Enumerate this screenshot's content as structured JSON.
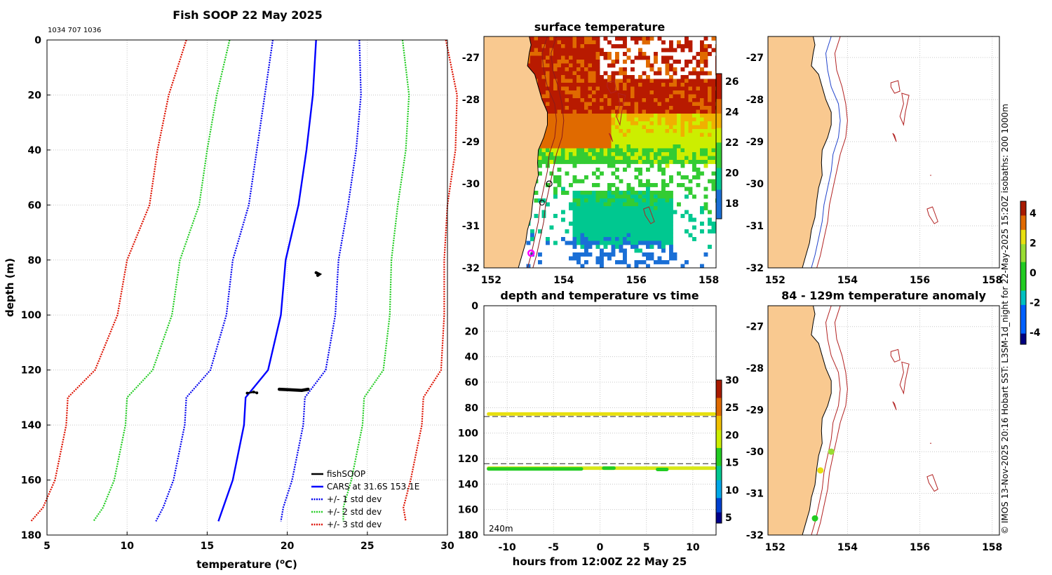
{
  "chart_data": [
    {
      "type": "line",
      "title": "Fish SOOP 22 May 2025",
      "subtitle": "1034 707 1036",
      "xlabel": "temperature",
      "xlabel_unit_pre": "(",
      "xlabel_unit_sup": "o",
      "xlabel_unit_post": "C)",
      "ylabel": "depth (m)",
      "xlim": [
        5,
        30
      ],
      "ylim": [
        180,
        0
      ],
      "xticks": [
        5,
        10,
        15,
        20,
        25,
        30
      ],
      "yticks": [
        0,
        20,
        40,
        60,
        80,
        100,
        120,
        140,
        160,
        180
      ],
      "legend": [
        "fishSOOP",
        "CARS at 31.6S 153.1E",
        "+/- 1 std dev",
        "+/- 2 std dev",
        "+/- 3 std dev"
      ],
      "series_colors": {
        "fishsoop": "#000000",
        "cars": "#0000ff",
        "sd1": "#0000ee",
        "sd2": "#22cc22",
        "sd3": "#dd1100"
      },
      "cars_depth": [
        0,
        20,
        40,
        60,
        80,
        100,
        120,
        130,
        140,
        160,
        170,
        175
      ],
      "cars_temp": [
        21.8,
        21.6,
        21.2,
        20.7,
        19.9,
        19.6,
        18.8,
        17.4,
        17.3,
        16.6,
        16.0,
        15.7
      ],
      "std_dev_width": [
        2.7,
        3.0,
        3.1,
        3.1,
        3.3,
        3.4,
        3.6,
        3.7,
        3.7,
        3.7,
        3.75,
        3.9
      ],
      "fishsoop_points": [
        [
          21.8,
          84.6
        ],
        [
          22.0,
          85.2
        ],
        [
          21.9,
          85.6
        ],
        [
          17.5,
          128.4
        ],
        [
          17.9,
          128.0
        ],
        [
          18.1,
          128.3
        ],
        [
          19.5,
          127.0
        ],
        [
          20.2,
          127.2
        ],
        [
          20.9,
          127.4
        ],
        [
          21.3,
          127.0
        ]
      ]
    },
    {
      "type": "heatmap",
      "title": "surface temperature",
      "xlim": [
        151.8,
        158.2
      ],
      "ylim": [
        -32,
        -26.5
      ],
      "xticks": [
        152,
        154,
        156,
        158
      ],
      "yticks": [
        -27,
        -28,
        -29,
        -30,
        -31,
        -32
      ],
      "colorbar_ticks": [
        18,
        20,
        22,
        24,
        26
      ],
      "colorbar_range": [
        17,
        26.5
      ]
    },
    {
      "type": "line",
      "title": "depth and temperature vs time",
      "xlabel": "hours from 12:00Z 22 May 25",
      "xlim": [
        -12.5,
        12.5
      ],
      "ylim": [
        180,
        0
      ],
      "xticks": [
        -10,
        -5,
        0,
        5,
        10
      ],
      "yticks": [
        0,
        20,
        40,
        60,
        80,
        100,
        120,
        140,
        160,
        180
      ],
      "annotation": "240m",
      "reference_depths": [
        87,
        124
      ],
      "colorbar_ticks": [
        5,
        10,
        15,
        20,
        25,
        30
      ],
      "colorbar_range": [
        4,
        30
      ],
      "series": [
        {
          "name": "shallow",
          "depth": 85,
          "temperature": 22.5
        },
        {
          "name": "deep",
          "depth": 127.5,
          "temperature": 17.5
        }
      ]
    },
    {
      "type": "map",
      "title": "",
      "xlim": [
        151.8,
        158.2
      ],
      "ylim": [
        -32,
        -26.5
      ],
      "xticks": [
        152,
        154,
        156,
        158
      ],
      "yticks": [
        -27,
        -28,
        -29,
        -30,
        -31,
        -32
      ]
    },
    {
      "type": "scatter",
      "title": "84 - 129m temperature anomaly",
      "xlim": [
        151.8,
        158.2
      ],
      "ylim": [
        -32,
        -26.5
      ],
      "xticks": [
        152,
        154,
        156,
        158
      ],
      "yticks": [
        -27,
        -28,
        -29,
        -30,
        -31,
        -32
      ],
      "points": [
        {
          "lon": 153.55,
          "lat": -30.0,
          "anomaly": 1.5
        },
        {
          "lon": 153.25,
          "lat": -30.45,
          "anomaly": 2.8
        },
        {
          "lon": 153.1,
          "lat": -31.6,
          "anomaly": 0.5
        }
      ],
      "colorbar_ticks": [
        4,
        2,
        0,
        -2,
        -4
      ],
      "colorbar_range": [
        -4.8,
        4.8
      ]
    }
  ],
  "side_text": "© IMOS 13-Nov-2025 20:16 Hobart SST: L3SM-1d_night for 22-May-2025 15:20Z isobaths: 200  1000m"
}
